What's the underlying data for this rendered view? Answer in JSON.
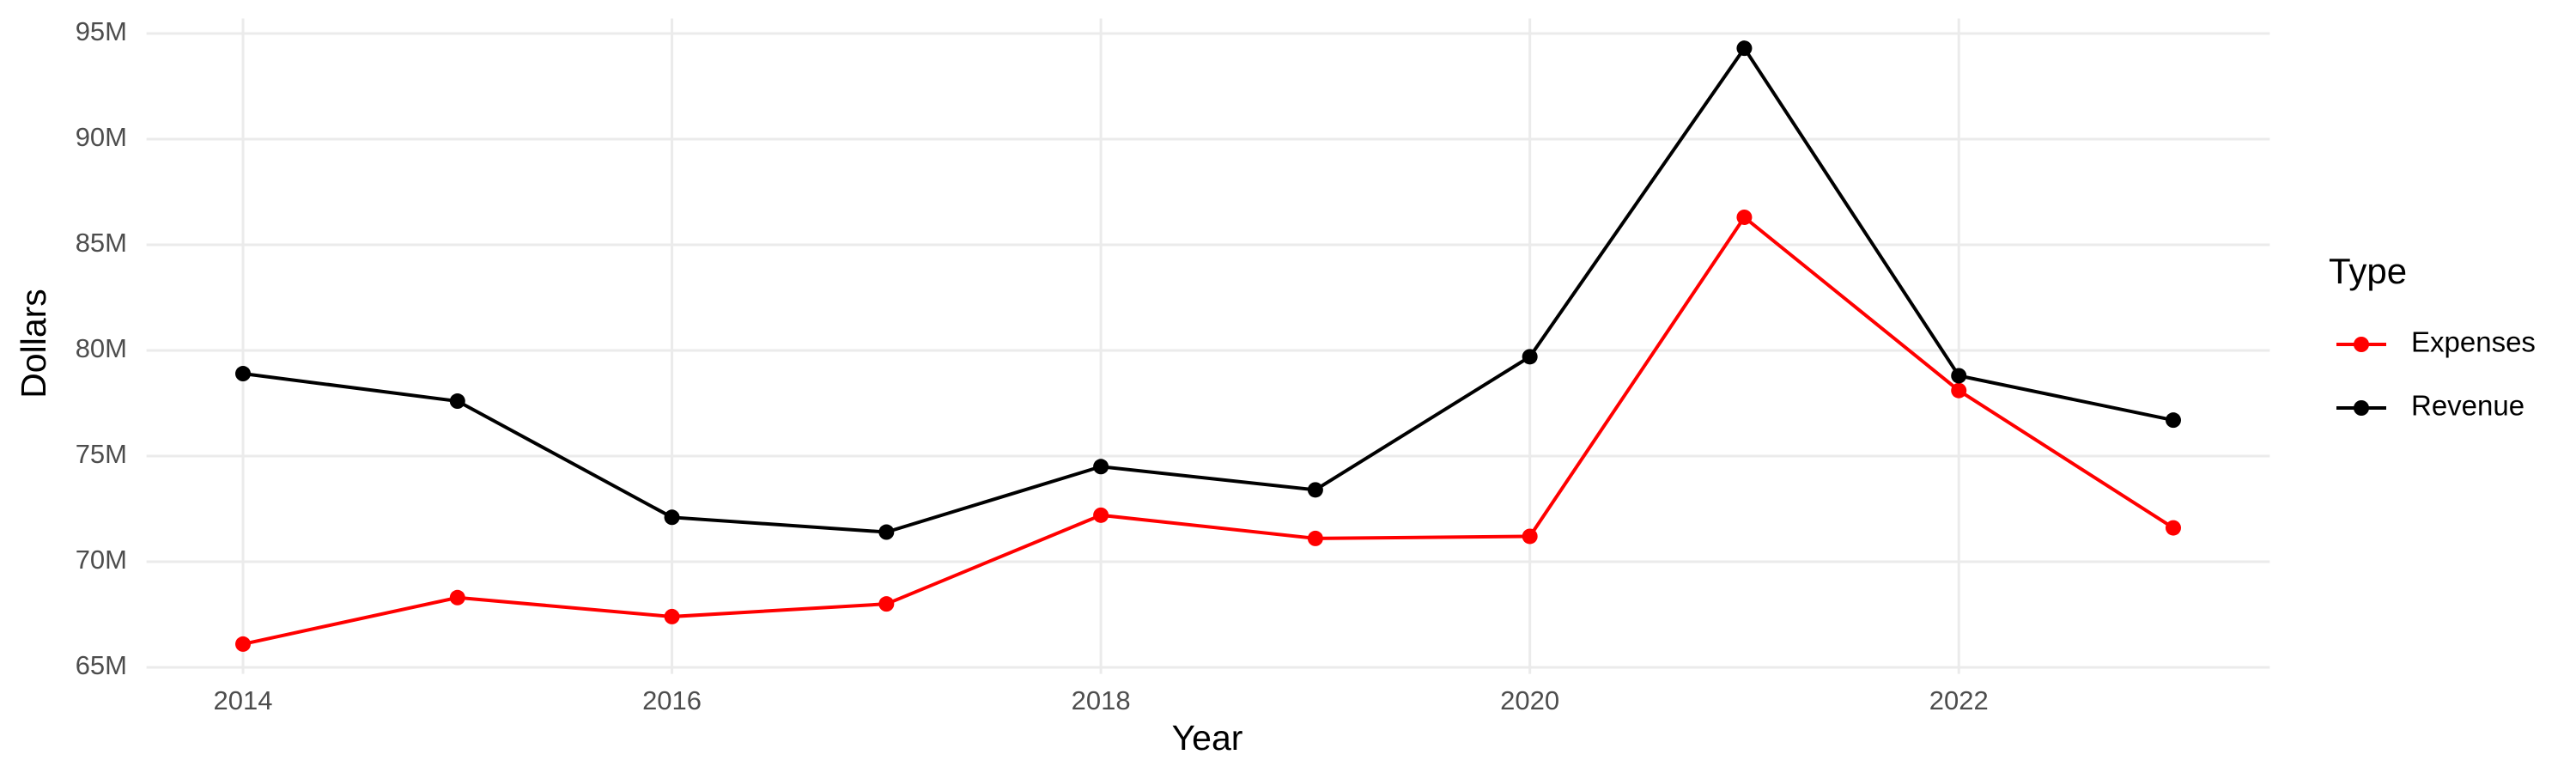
{
  "chart_data": {
    "type": "line",
    "x_label": "Year",
    "y_label": "Dollars",
    "legend_title": "Type",
    "legend_position": "right",
    "grid": true,
    "x": [
      2014,
      2015,
      2016,
      2017,
      2018,
      2019,
      2020,
      2021,
      2022,
      2023
    ],
    "series": [
      {
        "name": "Expenses",
        "color": "#ff0000",
        "values": [
          66100000,
          68300000,
          67400000,
          68000000,
          72200000,
          71100000,
          71200000,
          86300000,
          78100000,
          71600000
        ]
      },
      {
        "name": "Revenue",
        "color": "#000000",
        "values": [
          78900000,
          77600000,
          72100000,
          71400000,
          74500000,
          73400000,
          79700000,
          94300000,
          78800000,
          76700000
        ]
      }
    ],
    "xlim": [
      2013.55,
      2023.45
    ],
    "xticks": [
      2014,
      2016,
      2018,
      2020,
      2022
    ],
    "ylim": [
      64690000,
      95710000
    ],
    "yticks": [
      {
        "value": 65000000,
        "label": "65M"
      },
      {
        "value": 70000000,
        "label": "70M"
      },
      {
        "value": 75000000,
        "label": "75M"
      },
      {
        "value": 80000000,
        "label": "80M"
      },
      {
        "value": 85000000,
        "label": "85M"
      },
      {
        "value": 90000000,
        "label": "90M"
      },
      {
        "value": 95000000,
        "label": "95M"
      }
    ]
  }
}
